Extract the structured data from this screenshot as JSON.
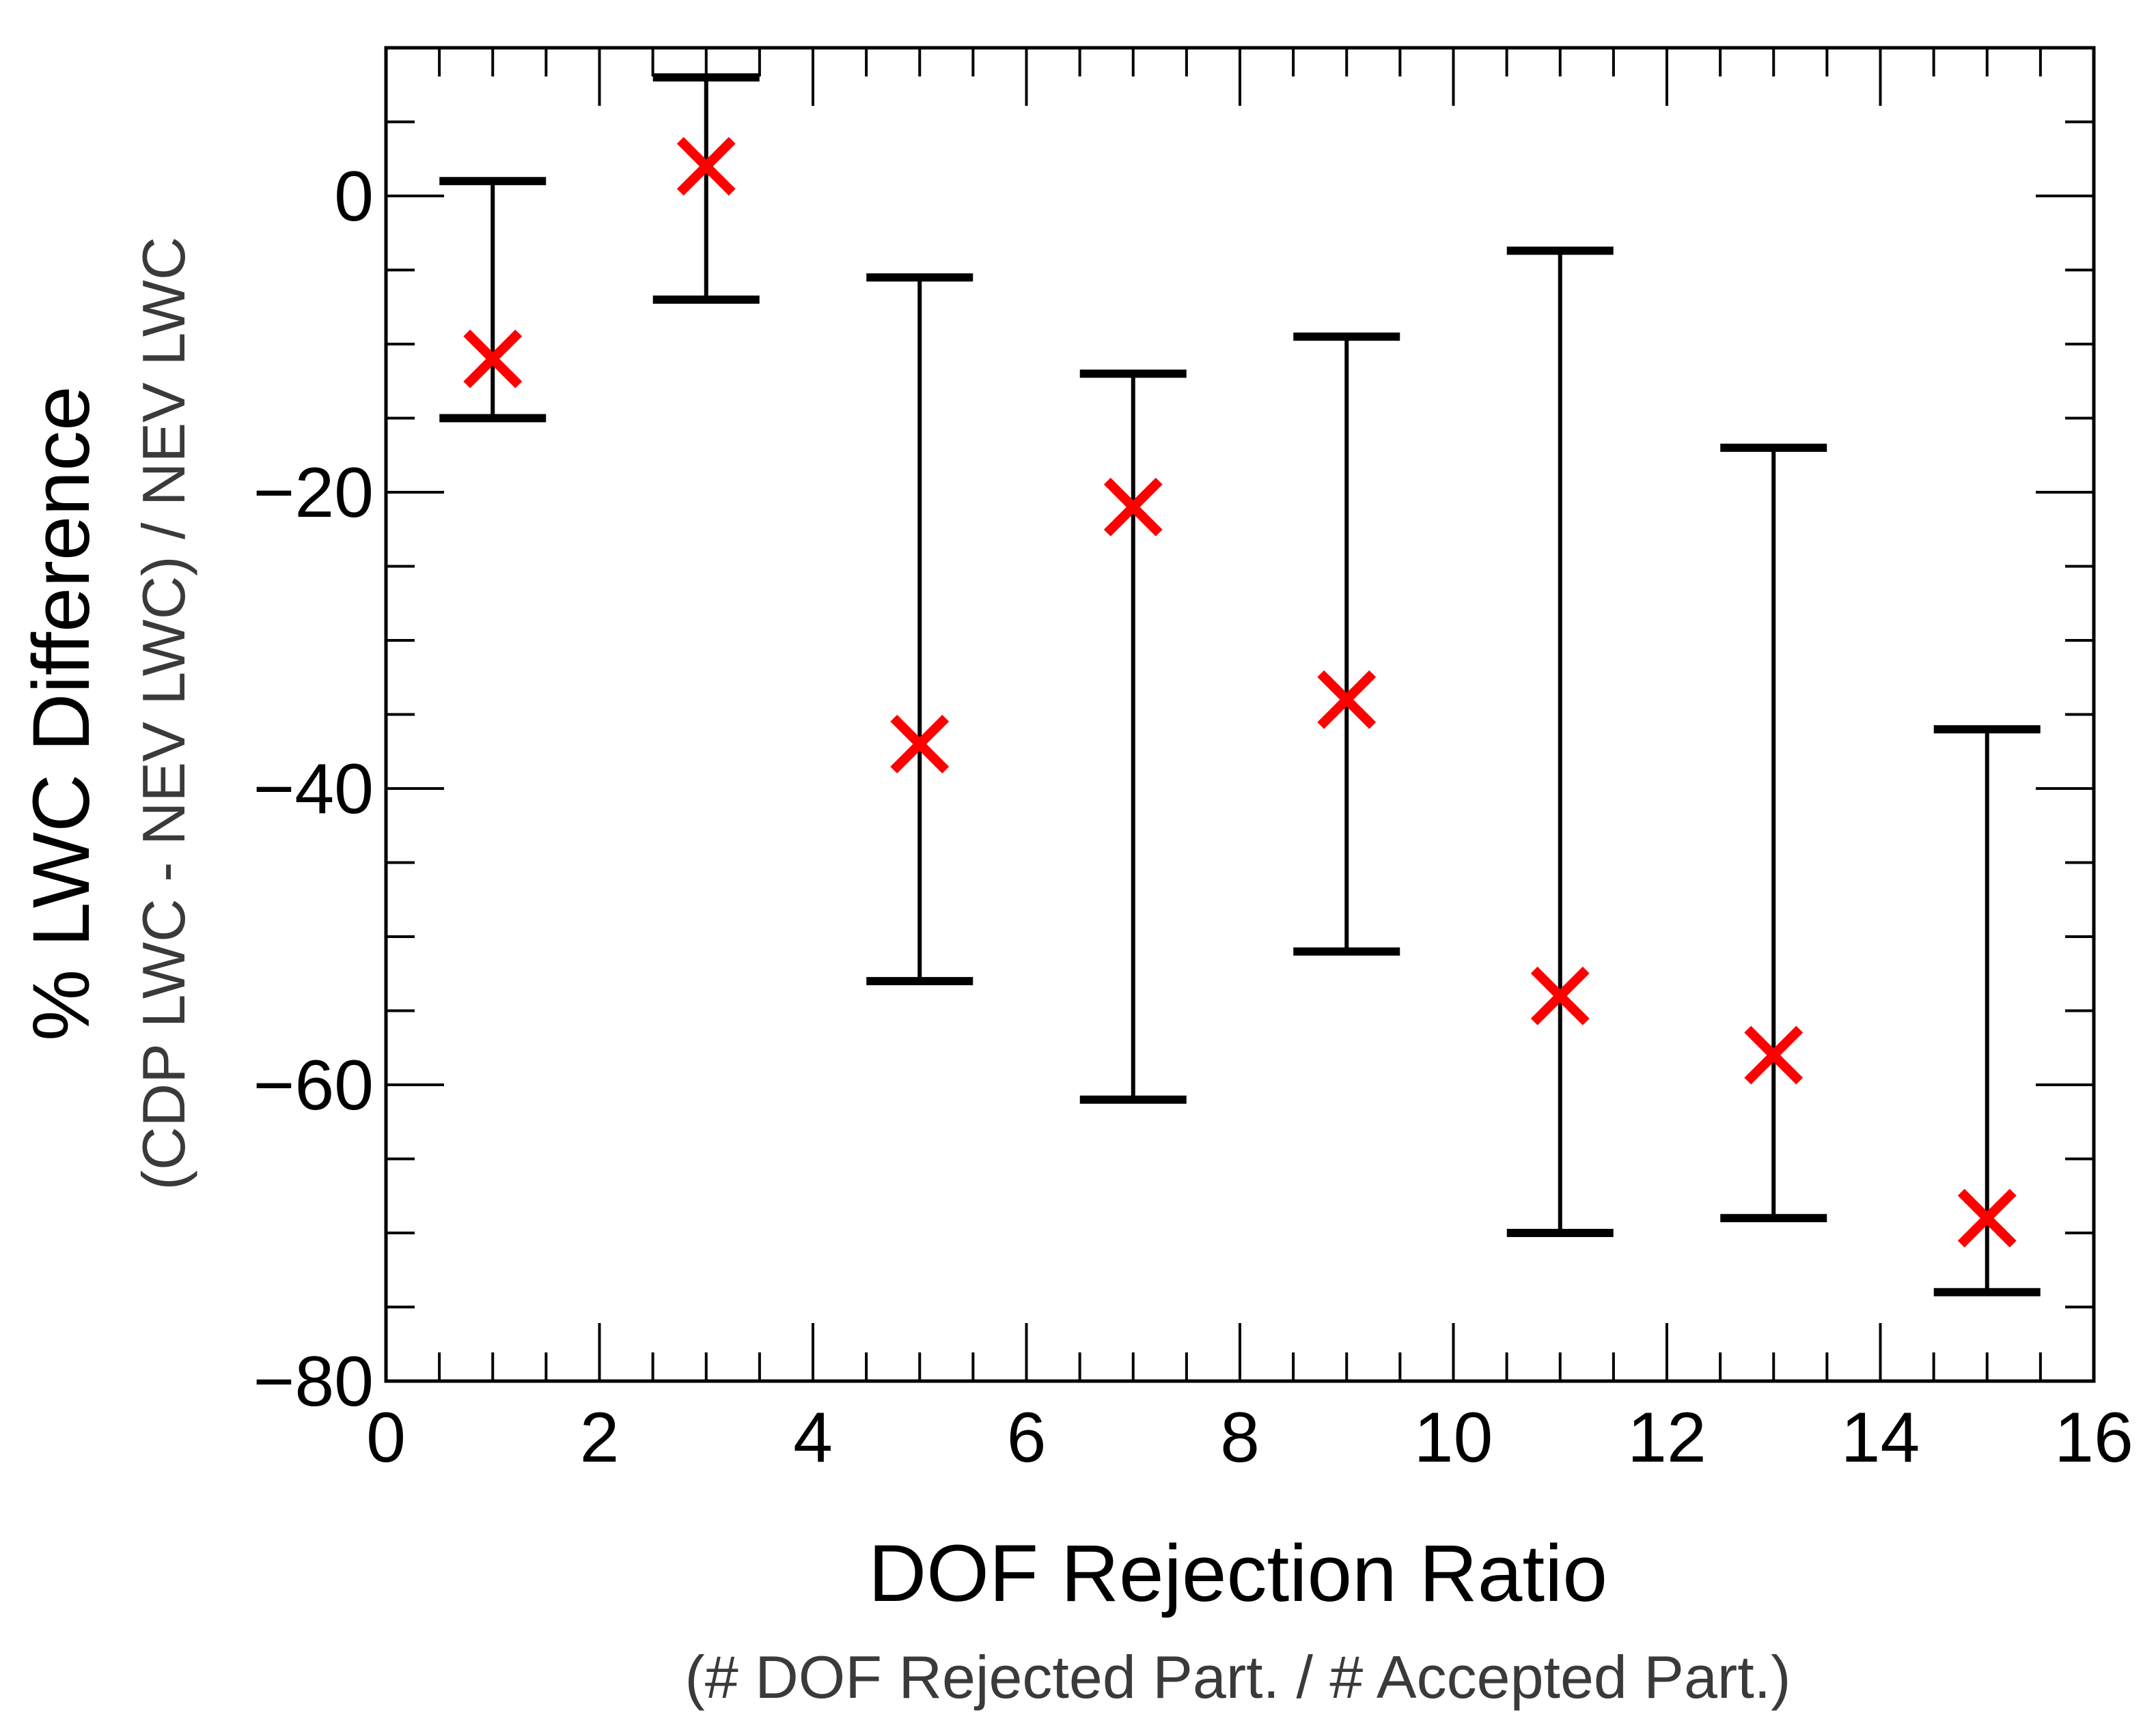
{
  "chart_data": {
    "type": "scatter",
    "title": "",
    "xlabel": "DOF Rejection Ratio",
    "xlabel_sub": "(# DOF Rejected Part. / # Accepted Part.)",
    "ylabel": "% LWC Difference",
    "ylabel_sub": "(CDP LWC - NEV LWC) / NEV LWC",
    "xlim": [
      0,
      16
    ],
    "ylim": [
      -80,
      10
    ],
    "x_ticks": [
      0,
      2,
      4,
      6,
      8,
      10,
      12,
      14,
      16
    ],
    "x_tick_labels": [
      "0",
      "2",
      "4",
      "6",
      "8",
      "10",
      "12",
      "14",
      "16"
    ],
    "y_ticks": [
      -80,
      -60,
      -40,
      -20,
      0
    ],
    "y_tick_labels": [
      "−80",
      "−60",
      "−40",
      "−20",
      "0"
    ],
    "grid": false,
    "marker_color": "#ff0000",
    "errorbar_color": "#000000",
    "points": [
      {
        "x": 1,
        "y": -11,
        "y_low": -15,
        "y_high": 1
      },
      {
        "x": 3,
        "y": 2,
        "y_low": -7,
        "y_high": 8
      },
      {
        "x": 5,
        "y": -37,
        "y_low": -53,
        "y_high": -5.5
      },
      {
        "x": 7,
        "y": -21,
        "y_low": -61,
        "y_high": -12
      },
      {
        "x": 9,
        "y": -34,
        "y_low": -51,
        "y_high": -9.5
      },
      {
        "x": 11,
        "y": -54,
        "y_low": -70,
        "y_high": -3.7
      },
      {
        "x": 13,
        "y": -58,
        "y_low": -69,
        "y_high": -17
      },
      {
        "x": 15,
        "y": -69,
        "y_low": -74,
        "y_high": -36
      }
    ]
  }
}
